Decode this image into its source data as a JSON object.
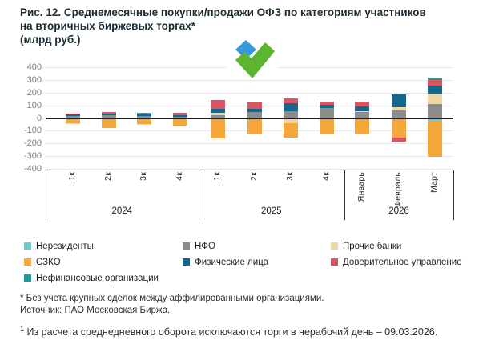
{
  "title": {
    "line1": "Рис. 12. Среднемесячные покупки/продажи ОФЗ по категориям участников",
    "line2": "на вторичных биржевых торгах*",
    "line3": "(млрд руб.)"
  },
  "logo": {
    "name": "moex-checkmark",
    "blue": "#3598dd",
    "green": "#5cb52e"
  },
  "chart_data": {
    "type": "bar",
    "stacked": true,
    "unit": "млрд руб.",
    "ylim": [
      -400,
      400
    ],
    "yticks": [
      400,
      300,
      200,
      100,
      0,
      -100,
      -200,
      -300,
      -400
    ],
    "grid": true,
    "colors": {
      "Нерезиденты": "#6fc9cf",
      "СЗКО": "#f5a73b",
      "Нефинансовые организации": "#1e9b9b",
      "НФО": "#8c8c8c",
      "Физические лица": "#15678a",
      "Прочие банки": "#f2d6a2",
      "Доверительное управление": "#dc5462"
    },
    "groups": [
      {
        "label": "2024",
        "items": [
          "1к",
          "2к",
          "3к",
          "4к"
        ]
      },
      {
        "label": "2025",
        "items": [
          "1к",
          "2к",
          "3к",
          "4к"
        ]
      },
      {
        "label": "2026",
        "items": [
          "Январь",
          "Февраль",
          "Март"
        ]
      }
    ],
    "bars": [
      {
        "group": "2024",
        "label": "1к",
        "segments": [
          {
            "name": "НФО",
            "value": 15
          },
          {
            "name": "Физические лица",
            "value": 12
          },
          {
            "name": "Доверительное управление",
            "value": 8
          },
          {
            "name": "СЗКО",
            "value": -42
          },
          {
            "name": "Прочие банки",
            "value": -8
          }
        ]
      },
      {
        "group": "2024",
        "label": "2к",
        "segments": [
          {
            "name": "НФО",
            "value": 22
          },
          {
            "name": "Физические лица",
            "value": 14
          },
          {
            "name": "Доверительное управление",
            "value": 14
          },
          {
            "name": "СЗКО",
            "value": -80
          }
        ]
      },
      {
        "group": "2024",
        "label": "3к",
        "segments": [
          {
            "name": "НФО",
            "value": 15
          },
          {
            "name": "Физические лица",
            "value": 22
          },
          {
            "name": "Доверительное управление",
            "value": 5
          },
          {
            "name": "СЗКО",
            "value": -45
          },
          {
            "name": "Прочие банки",
            "value": -10
          }
        ]
      },
      {
        "group": "2024",
        "label": "4к",
        "segments": [
          {
            "name": "НФО",
            "value": 12
          },
          {
            "name": "Физические лица",
            "value": 8
          },
          {
            "name": "Доверительное управление",
            "value": 22
          },
          {
            "name": "СЗКО",
            "value": -60
          }
        ]
      },
      {
        "group": "2025",
        "label": "1к",
        "segments": [
          {
            "name": "Нефинансовые организации",
            "value": 5
          },
          {
            "name": "НФО",
            "value": 18
          },
          {
            "name": "Прочие банки",
            "value": 20
          },
          {
            "name": "Физические лица",
            "value": 30
          },
          {
            "name": "Доверительное управление",
            "value": 68
          },
          {
            "name": "СЗКО",
            "value": -158
          }
        ]
      },
      {
        "group": "2025",
        "label": "2к",
        "segments": [
          {
            "name": "НФО",
            "value": 47
          },
          {
            "name": "Физические лица",
            "value": 28
          },
          {
            "name": "Доверительное управление",
            "value": 46
          },
          {
            "name": "СЗКО",
            "value": -127
          }
        ]
      },
      {
        "group": "2025",
        "label": "3к",
        "segments": [
          {
            "name": "НФО",
            "value": 52
          },
          {
            "name": "Физические лица",
            "value": 64
          },
          {
            "name": "Доверительное управление",
            "value": 38
          },
          {
            "name": "Прочие банки",
            "value": -38
          },
          {
            "name": "СЗКО",
            "value": -118
          }
        ]
      },
      {
        "group": "2025",
        "label": "4к",
        "segments": [
          {
            "name": "Нефинансовые организации",
            "value": 6
          },
          {
            "name": "НФО",
            "value": 70
          },
          {
            "name": "Физические лица",
            "value": 26
          },
          {
            "name": "Доверительное управление",
            "value": 26
          },
          {
            "name": "СЗКО",
            "value": -126
          }
        ]
      },
      {
        "group": "2026",
        "label": "Январь",
        "segments": [
          {
            "name": "НФО",
            "value": 45
          },
          {
            "name": "Прочие банки",
            "value": 8
          },
          {
            "name": "Физические лица",
            "value": 38
          },
          {
            "name": "Доверительное управление",
            "value": 36
          },
          {
            "name": "СЗКО",
            "value": -131
          }
        ]
      },
      {
        "group": "2026",
        "label": "Февраль",
        "segments": [
          {
            "name": "НФО",
            "value": 58
          },
          {
            "name": "Прочие банки",
            "value": 26
          },
          {
            "name": "Физические лица",
            "value": 100
          },
          {
            "name": "СЗКО",
            "value": -156
          },
          {
            "name": "Доверительное управление",
            "value": -32
          }
        ]
      },
      {
        "group": "2026",
        "label": "Март",
        "segments": [
          {
            "name": "НФО",
            "value": 112
          },
          {
            "name": "Прочие банки",
            "value": 82
          },
          {
            "name": "Физические лица",
            "value": 62
          },
          {
            "name": "Доверительное управление",
            "value": 44
          },
          {
            "name": "Нефинансовые организации",
            "value": 16
          },
          {
            "name": "Нерезиденты",
            "value": -24
          },
          {
            "name": "СЗКО",
            "value": -282
          }
        ]
      }
    ]
  },
  "legend": {
    "columns": [
      {
        "items": [
          {
            "label": "Нерезиденты",
            "color": "#6fc9cf"
          },
          {
            "label": "СЗКО",
            "color": "#f5a73b"
          },
          {
            "label": "Нефинансовые организации",
            "color": "#1e9b9b"
          }
        ]
      },
      {
        "items": [
          {
            "label": "НФО",
            "color": "#8c8c8c"
          },
          {
            "label": "Физические лица",
            "color": "#15678a"
          }
        ]
      },
      {
        "items": [
          {
            "label": "Прочие банки",
            "color": "#f2d6a2"
          },
          {
            "label": "Доверительное управление",
            "color": "#dc5462"
          }
        ]
      }
    ]
  },
  "footnotes": {
    "asterisk": "* Без учета крупных сделок между аффилированными организациями.",
    "source": "Источник: ПАО Московская Биржа.",
    "note1_sup": "1",
    "note1_text": " Из расчета среднедневного оборота исключаются торги в нерабочий день – 09.03.2026."
  }
}
